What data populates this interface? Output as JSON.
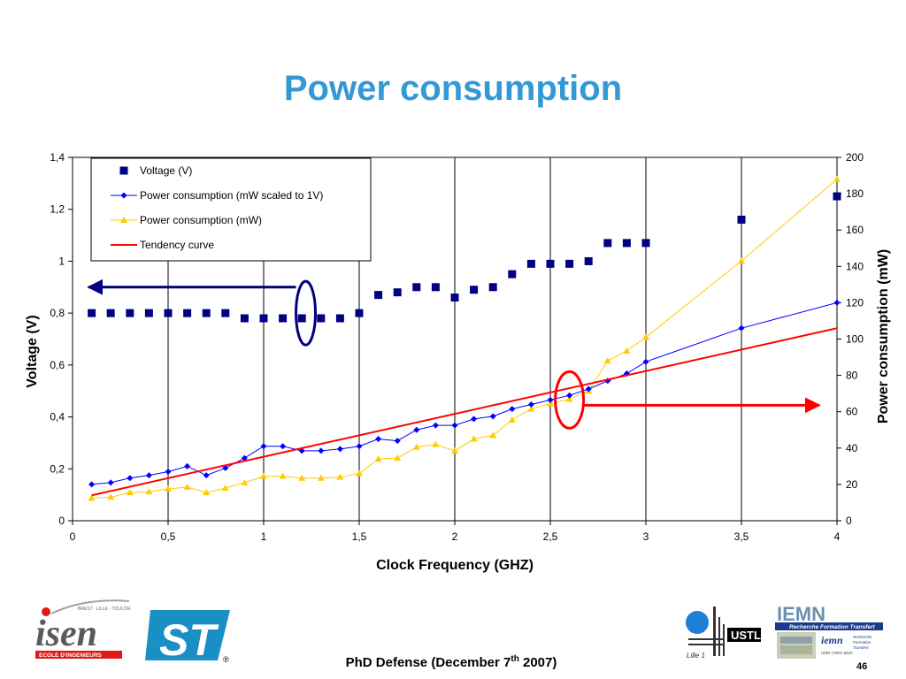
{
  "slide": {
    "title": "Power consumption",
    "footer_pre": "PhD Defense (December 7",
    "footer_sup": "th",
    "footer_post": " 2007)",
    "page_number": "46"
  },
  "logos": {
    "isen_text": "isen",
    "isen_top": "BREST · LILLE · TOULON",
    "isen_bottom": "ECOLE D'INGENIEURS",
    "st_text": "ST",
    "st_mark": "®",
    "ustl_text": "USTL",
    "ustl_sub": "Lille 1",
    "iemn_text": "IEMN",
    "iemn_banner": "Recherche Formation Transfert",
    "iemn_small": "iemn",
    "iemn_sub1": "Recherche",
    "iemn_sub2": "Formation",
    "iemn_sub3": "Transfert",
    "iemn_umr": "UMR CNRS 8520"
  },
  "chart_data": {
    "type": "line",
    "xlabel": "Clock Frequency (GHZ)",
    "ylabel": "Voltage (V)",
    "y2label": "Power consumption (mW)",
    "xlim": [
      0,
      4
    ],
    "ylim": [
      0,
      1.4
    ],
    "y2lim": [
      0,
      200
    ],
    "x_ticks": [
      "0",
      "0,5",
      "1",
      "1,5",
      "2",
      "2,5",
      "3",
      "3,5",
      "4"
    ],
    "y_ticks": [
      "0",
      "0,2",
      "0,4",
      "0,6",
      "0,8",
      "1",
      "1,2",
      "1,4"
    ],
    "y2_ticks": [
      "0",
      "20",
      "40",
      "60",
      "80",
      "100",
      "120",
      "140",
      "160",
      "180",
      "200"
    ],
    "grid": "vertical",
    "legend_position": "top-left",
    "series": [
      {
        "name": "Voltage (V)",
        "axis": "left",
        "marker": "square",
        "line": false,
        "color": "#000080",
        "x": [
          0.1,
          0.2,
          0.3,
          0.4,
          0.5,
          0.6,
          0.7,
          0.8,
          0.9,
          1.0,
          1.1,
          1.2,
          1.3,
          1.4,
          1.5,
          1.6,
          1.7,
          1.8,
          1.9,
          2.0,
          2.1,
          2.2,
          2.3,
          2.4,
          2.5,
          2.6,
          2.7,
          2.8,
          2.9,
          3.0,
          3.5,
          4.0
        ],
        "values": [
          0.8,
          0.8,
          0.8,
          0.8,
          0.8,
          0.8,
          0.8,
          0.8,
          0.78,
          0.78,
          0.78,
          0.78,
          0.78,
          0.78,
          0.8,
          0.87,
          0.88,
          0.9,
          0.9,
          0.86,
          0.89,
          0.9,
          0.95,
          0.99,
          0.99,
          0.99,
          1.0,
          1.07,
          1.07,
          1.07,
          1.16,
          1.25
        ]
      },
      {
        "name": "Power consumption  (mW scaled to 1V)",
        "axis": "right",
        "marker": "diamond",
        "line": true,
        "color": "#0000ff",
        "x": [
          0.1,
          0.2,
          0.3,
          0.4,
          0.5,
          0.6,
          0.7,
          0.8,
          0.9,
          1.0,
          1.1,
          1.2,
          1.3,
          1.4,
          1.5,
          1.6,
          1.7,
          1.8,
          1.9,
          2.0,
          2.1,
          2.2,
          2.3,
          2.4,
          2.5,
          2.6,
          2.7,
          2.8,
          2.9,
          3.0,
          3.5,
          4.0
        ],
        "values": [
          20,
          21,
          23.5,
          25,
          27,
          30,
          25,
          29,
          34.5,
          41,
          41,
          38.5,
          38.5,
          39.5,
          41,
          45,
          44,
          50,
          52.5,
          52.5,
          56,
          57.5,
          61.5,
          64,
          66.5,
          69,
          72.5,
          77,
          81,
          87.5,
          106,
          120
        ]
      },
      {
        "name": "Power consumption (mW)",
        "axis": "right",
        "marker": "triangle",
        "line": true,
        "color": "#ffcc00",
        "x": [
          0.1,
          0.2,
          0.3,
          0.4,
          0.5,
          0.6,
          0.7,
          0.8,
          0.9,
          1.0,
          1.1,
          1.2,
          1.3,
          1.4,
          1.5,
          1.6,
          1.7,
          1.8,
          1.9,
          2.0,
          2.1,
          2.2,
          2.3,
          2.4,
          2.5,
          2.6,
          2.7,
          2.8,
          2.9,
          3.0,
          3.5,
          4.0
        ],
        "values": [
          12.5,
          13,
          15.5,
          16,
          17.5,
          18.5,
          15.5,
          18,
          21,
          24.5,
          24.5,
          23.5,
          23.5,
          24,
          26,
          34,
          34.5,
          40.5,
          42,
          38.5,
          45,
          47,
          55.5,
          61.5,
          64.5,
          67,
          71.5,
          88,
          93.5,
          101,
          143,
          188
        ]
      },
      {
        "name": "Tendency curve",
        "axis": "right",
        "marker": "none",
        "line": true,
        "color": "#ff0000",
        "x": [
          0.1,
          4.0
        ],
        "values": [
          14,
          106
        ]
      }
    ],
    "annotations": [
      {
        "type": "ellipse",
        "color": "#000080",
        "note": "Voltage series circled near x=1.2"
      },
      {
        "type": "arrow",
        "color": "#000080",
        "direction": "left",
        "target_axis": "Voltage (V)"
      },
      {
        "type": "ellipse",
        "color": "#ff0000",
        "note": "Power curves circled near x=2.6"
      },
      {
        "type": "arrow",
        "color": "#ff0000",
        "direction": "right",
        "target_axis": "Power consumption (mW)"
      }
    ]
  }
}
